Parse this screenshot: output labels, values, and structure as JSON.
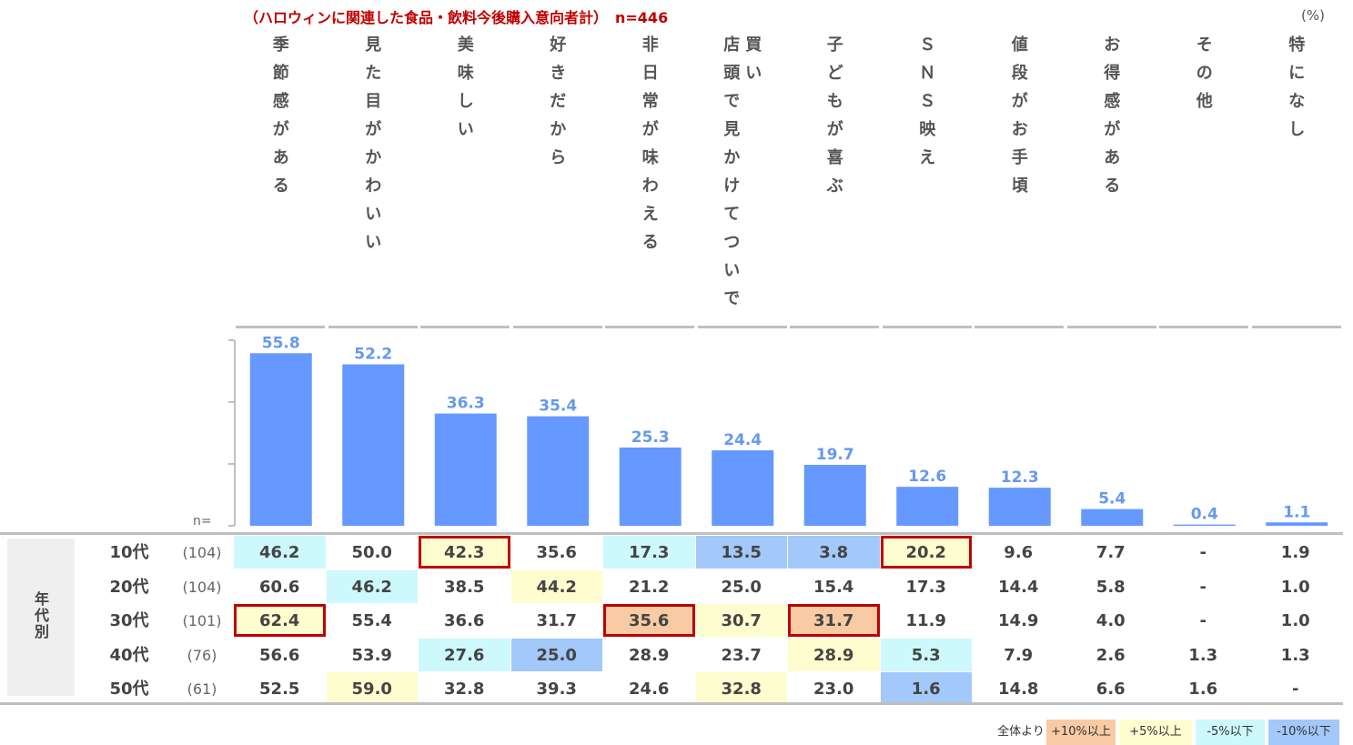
{
  "title": "（ハロウィンに関連した食品・飲料今後購入意向者計）　n=446",
  "unit": "(%)",
  "n_label": "n=",
  "group_label": "年代別",
  "colors": {
    "bar": "#6699ff",
    "bar_label": "#6699ee",
    "plus10": "#f8cba4",
    "plus5": "#fdfdd0",
    "minus5": "#cdf8fc",
    "minus10": "#a3c8fa",
    "highlight_border": "#c00000"
  },
  "chart_data": {
    "type": "bar",
    "categories": [
      "季節感がある",
      "見た目がかわいい",
      "美味しい",
      "好きだから",
      "非日常が味わえる",
      "店頭で見かけてついで買い",
      "子どもが喜ぶ",
      "ＳＮＳ映え",
      "値段がお手頃",
      "お得感がある",
      "その他",
      "特になし"
    ],
    "category_lines": [
      [
        "季節感がある"
      ],
      [
        "見た目がかわいい"
      ],
      [
        "美味しい"
      ],
      [
        "好きだから"
      ],
      [
        "非日常が味わえる"
      ],
      [
        "店頭で見かけてついで",
        "買い"
      ],
      [
        "子どもが喜ぶ"
      ],
      [
        "ＳＮＳ映え"
      ],
      [
        "値段がお手頃"
      ],
      [
        "お得感がある"
      ],
      [
        "その他"
      ],
      [
        "特になし"
      ]
    ],
    "values": [
      55.8,
      52.2,
      36.3,
      35.4,
      25.3,
      24.4,
      19.7,
      12.6,
      12.3,
      5.4,
      0.4,
      1.1
    ],
    "value_labels": [
      "55.8",
      "52.2",
      "36.3",
      "35.4",
      "25.3",
      "24.4",
      "19.7",
      "12.6",
      "12.3",
      "5.4",
      "0.4",
      "1.1"
    ],
    "ylim": [
      0,
      60
    ]
  },
  "table": {
    "rows": [
      {
        "age": "10代",
        "n": "(104)",
        "values": [
          "46.2",
          "50.0",
          "42.3",
          "35.6",
          "17.3",
          "13.5",
          "3.8",
          "20.2",
          "9.6",
          "7.7",
          "-",
          "1.9"
        ]
      },
      {
        "age": "20代",
        "n": "(104)",
        "values": [
          "60.6",
          "46.2",
          "38.5",
          "44.2",
          "21.2",
          "25.0",
          "15.4",
          "17.3",
          "14.4",
          "5.8",
          "-",
          "1.0"
        ]
      },
      {
        "age": "30代",
        "n": "(101)",
        "values": [
          "62.4",
          "55.4",
          "36.6",
          "31.7",
          "35.6",
          "30.7",
          "31.7",
          "11.9",
          "14.9",
          "4.0",
          "-",
          "1.0"
        ]
      },
      {
        "age": "40代",
        "n": "(76)",
        "values": [
          "56.6",
          "53.9",
          "27.6",
          "25.0",
          "28.9",
          "23.7",
          "28.9",
          "5.3",
          "7.9",
          "2.6",
          "1.3",
          "1.3"
        ]
      },
      {
        "age": "50代",
        "n": "(61)",
        "values": [
          "52.5",
          "59.0",
          "32.8",
          "39.3",
          "24.6",
          "32.8",
          "23.0",
          "1.6",
          "14.8",
          "6.6",
          "1.6",
          "-"
        ]
      }
    ],
    "shading": [
      [
        "minus5",
        "",
        "plus5",
        "",
        "minus5",
        "minus10",
        "minus10",
        "plus5",
        "",
        "",
        "",
        ""
      ],
      [
        "",
        "minus5",
        "",
        "plus5",
        "",
        "",
        "",
        "",
        "",
        "",
        "",
        ""
      ],
      [
        "plus5",
        "",
        "",
        "",
        "plus10",
        "plus5",
        "plus10",
        "",
        "",
        "",
        "",
        ""
      ],
      [
        "",
        "",
        "minus5",
        "minus10",
        "",
        "",
        "plus5",
        "minus5",
        "",
        "",
        "",
        ""
      ],
      [
        "",
        "plus5",
        "",
        "",
        "",
        "plus5",
        "",
        "minus10",
        "",
        "",
        "",
        ""
      ]
    ],
    "highlight": [
      [
        false,
        false,
        true,
        false,
        false,
        false,
        false,
        true,
        false,
        false,
        false,
        false
      ],
      [
        false,
        false,
        false,
        false,
        false,
        false,
        false,
        false,
        false,
        false,
        false,
        false
      ],
      [
        true,
        false,
        false,
        false,
        true,
        false,
        true,
        false,
        false,
        false,
        false,
        false
      ],
      [
        false,
        false,
        false,
        false,
        false,
        false,
        false,
        false,
        false,
        false,
        false,
        false
      ],
      [
        false,
        false,
        false,
        false,
        false,
        false,
        false,
        false,
        false,
        false,
        false,
        false
      ]
    ]
  },
  "legend": {
    "prefix": "全体より",
    "items": [
      {
        "label": "+10%以上",
        "color": "#f8cba4"
      },
      {
        "label": "+5%以上",
        "color": "#fdfdd0"
      },
      {
        "label": "-5%以下",
        "color": "#cdf8fc"
      },
      {
        "label": "-10%以下",
        "color": "#a3c8fa"
      }
    ]
  }
}
